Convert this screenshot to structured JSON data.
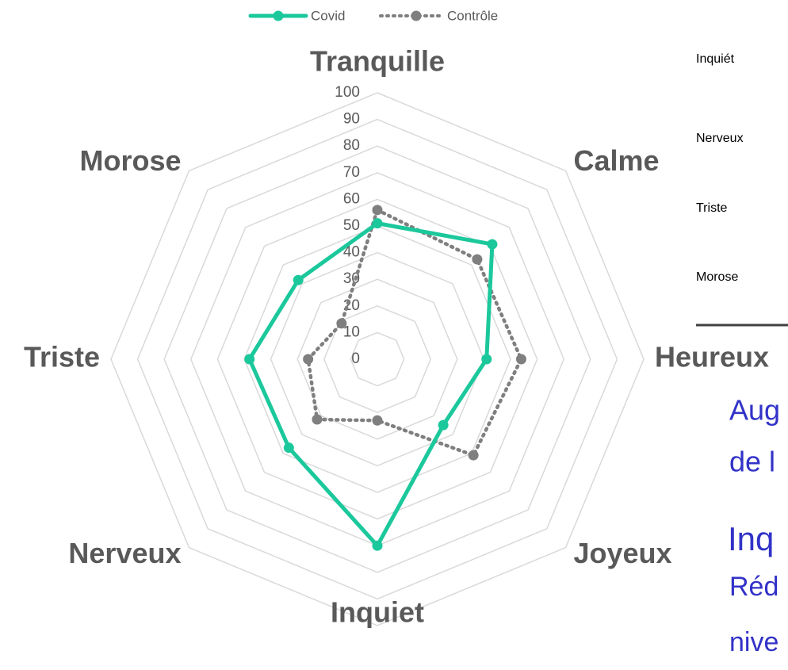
{
  "chart_data": {
    "type": "radar",
    "categories": [
      "Tranquille",
      "Calme",
      "Heureux",
      "Joyeux",
      "Inquiet",
      "Nerveux",
      "Triste",
      "Morose"
    ],
    "series": [
      {
        "name": "Covid",
        "color": "#1bc89c",
        "values": [
          51,
          61,
          41,
          35,
          70,
          47,
          48,
          42
        ]
      },
      {
        "name": "Contrôle",
        "color": "#7f7f7f",
        "values": [
          56,
          53,
          54,
          51,
          23,
          32,
          26,
          19
        ]
      }
    ],
    "ylim": [
      0,
      100
    ],
    "yticks": [
      0,
      10,
      20,
      30,
      40,
      50,
      60,
      70,
      80,
      90,
      100
    ],
    "grid": true,
    "legend": "top",
    "side_labels": [
      "Inquiét",
      "Nerveux",
      "Triste",
      "Morose"
    ],
    "side_text": [
      "Aug",
      "de l",
      "Inq",
      "Réd",
      "nive"
    ]
  }
}
